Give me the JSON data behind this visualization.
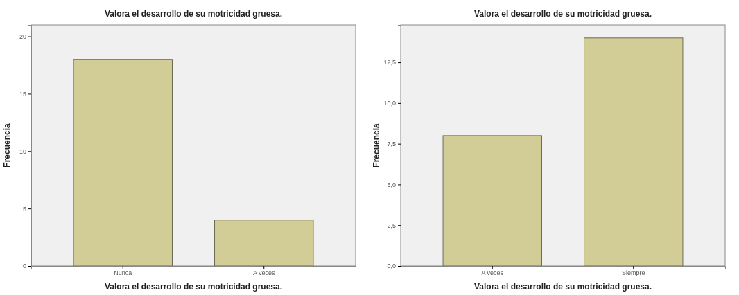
{
  "chart_data": [
    {
      "type": "bar",
      "title": "Valora el desarrollo de su motricidad gruesa.",
      "xlabel": "Valora el desarrollo de su motricidad gruesa.",
      "ylabel": "Frecuencia",
      "categories": [
        "Nunca",
        "A veces"
      ],
      "values": [
        18,
        4
      ],
      "color": "#d2cd96",
      "ylim": [
        0,
        21
      ],
      "yticks": [
        0,
        5,
        10,
        15,
        20
      ]
    },
    {
      "type": "bar",
      "title": "Valora el desarrollo de su motricidad gruesa.",
      "xlabel": "Valora el desarrollo de su motricidad gruesa.",
      "ylabel": "Frecuencia",
      "categories": [
        "A veces",
        "Siempre"
      ],
      "values": [
        8,
        14
      ],
      "color": "#d2cd96",
      "ylim": [
        0,
        14.8
      ],
      "yticks": [
        {
          "value": 0,
          "label": "0,0"
        },
        {
          "value": 2.5,
          "label": "2,5"
        },
        {
          "value": 5,
          "label": "5,0"
        },
        {
          "value": 7.5,
          "label": "7,5"
        },
        {
          "value": 10,
          "label": "10,0"
        },
        {
          "value": 12.5,
          "label": "12,5"
        }
      ]
    }
  ]
}
